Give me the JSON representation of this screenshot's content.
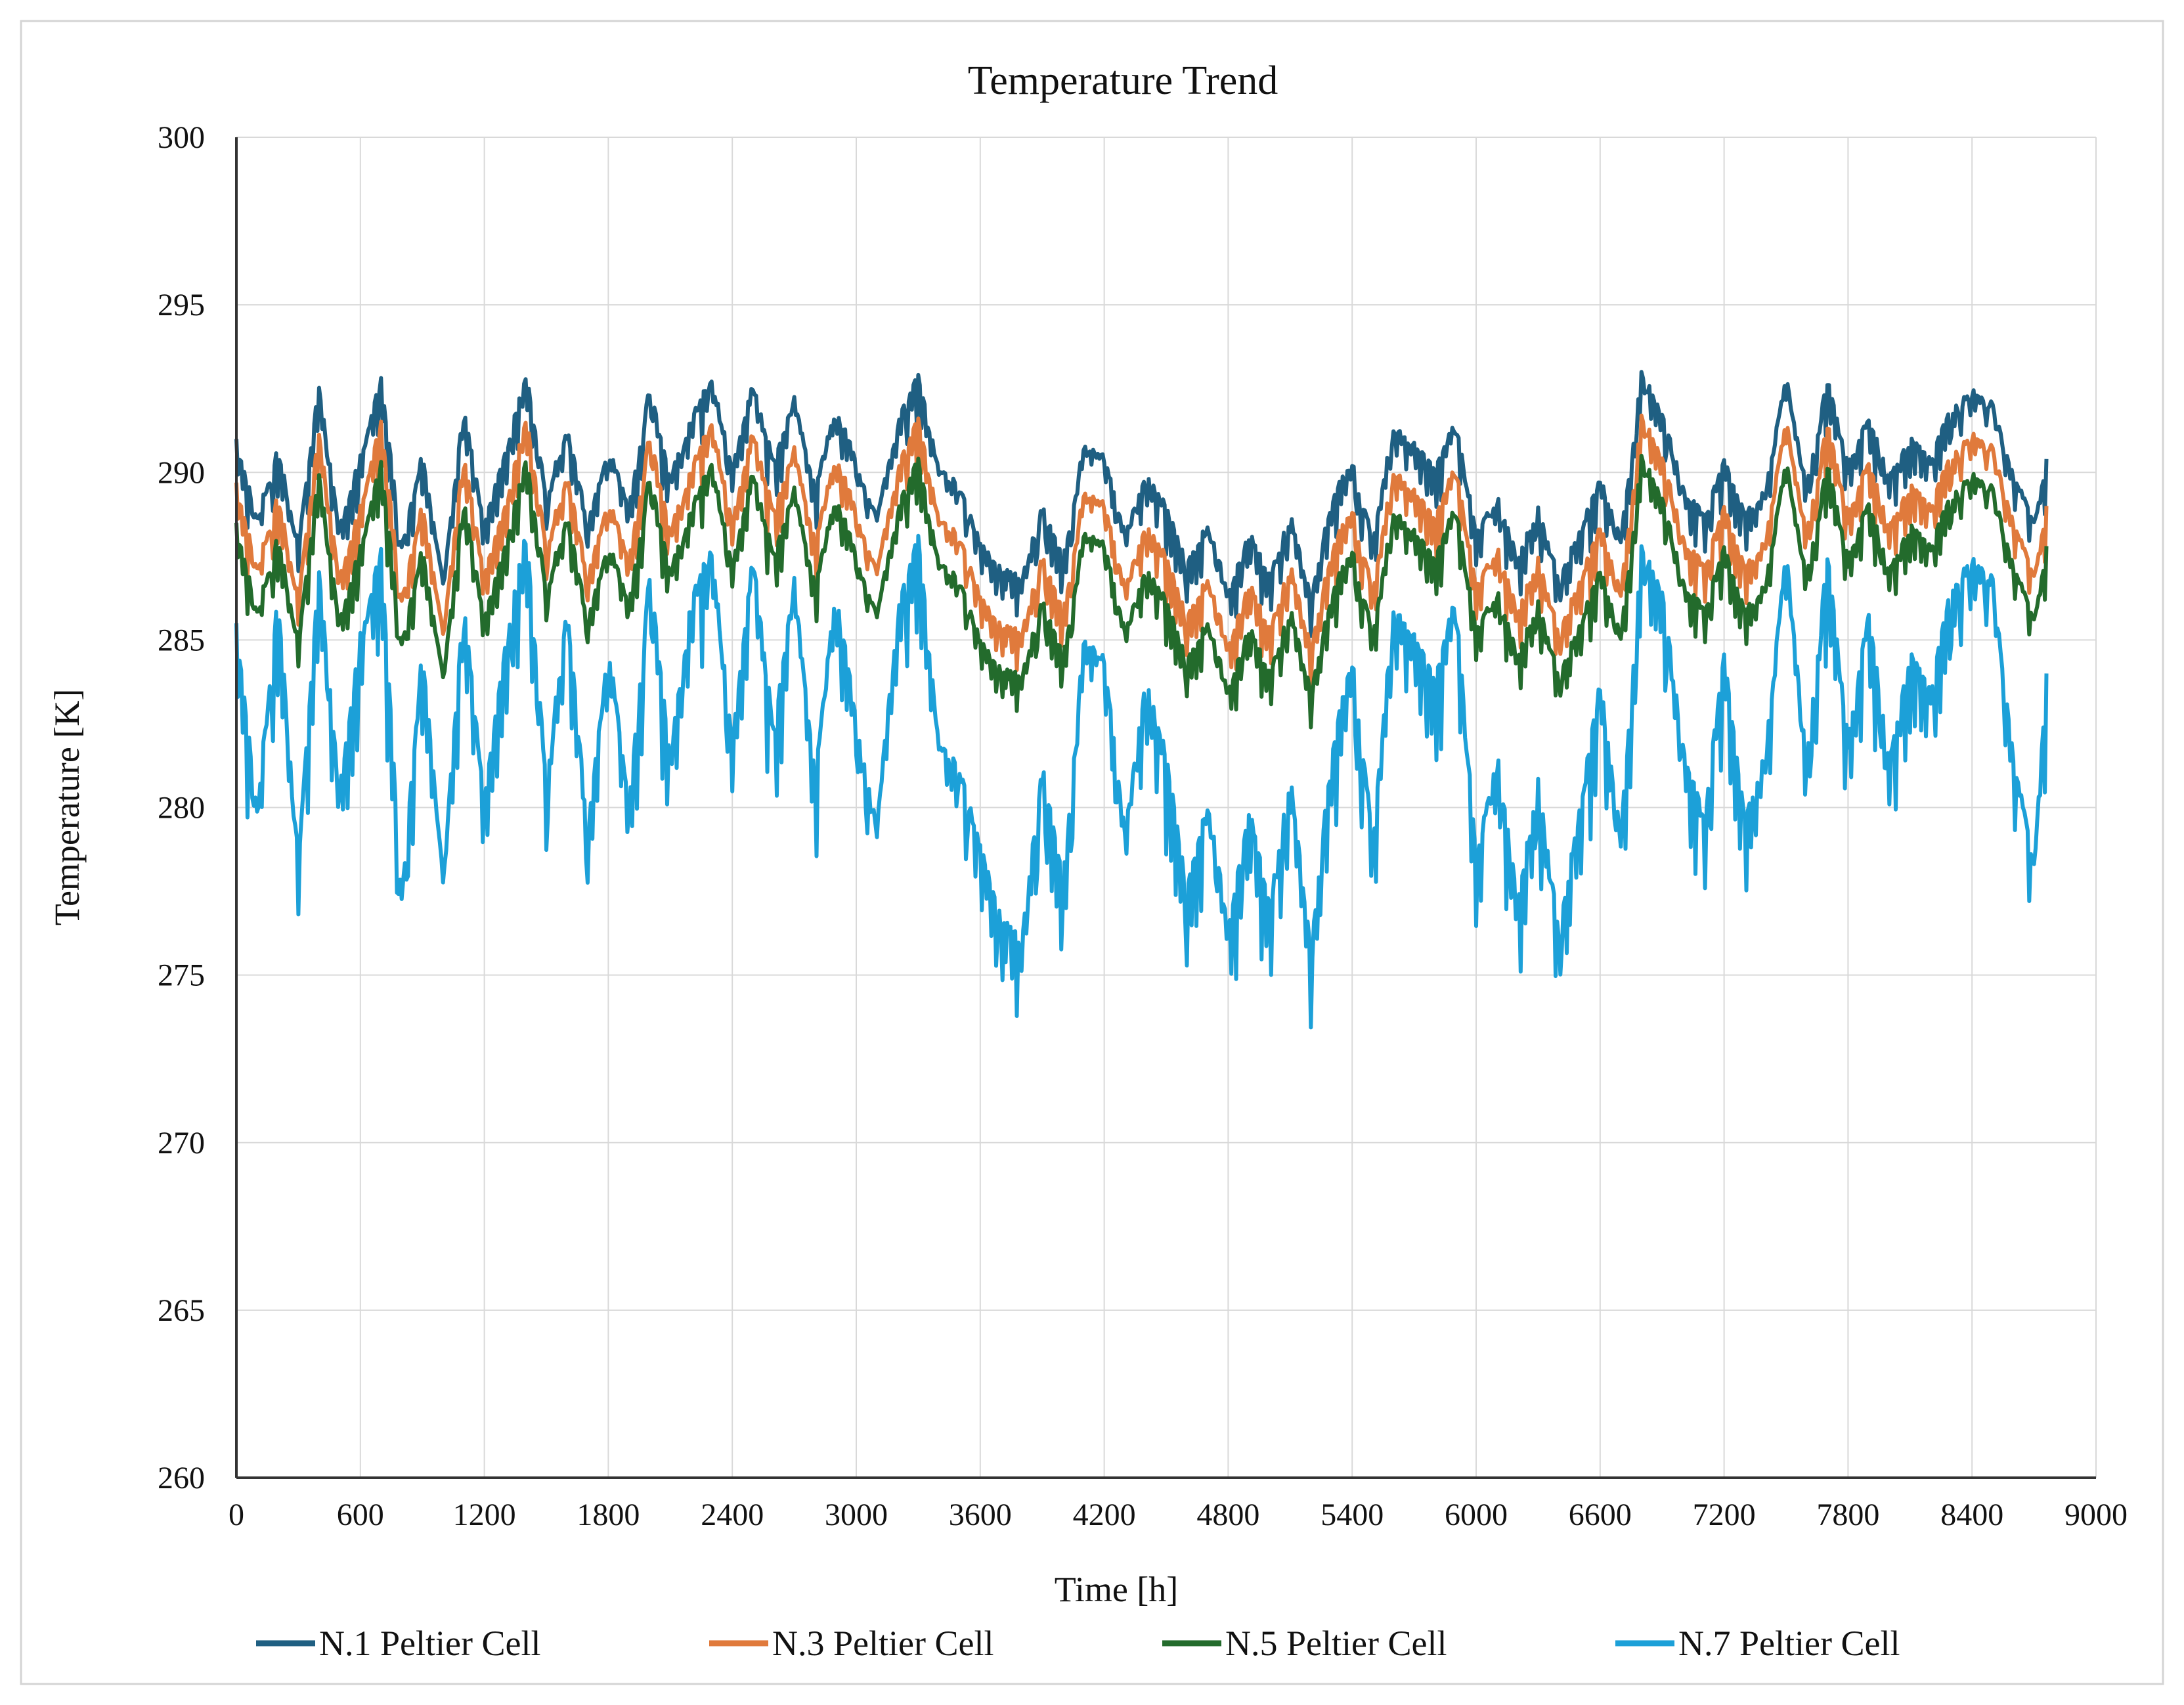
{
  "chart_data": {
    "type": "line",
    "title": "Temperature Trend",
    "xlabel": "Time [h]",
    "ylabel": "Temperature [K]",
    "xlim": [
      0,
      9000
    ],
    "ylim": [
      260,
      300
    ],
    "xticks": [
      0,
      600,
      1200,
      1800,
      2400,
      3000,
      3600,
      4200,
      4800,
      5400,
      6000,
      6600,
      7200,
      7800,
      8400,
      9000
    ],
    "yticks": [
      260,
      265,
      270,
      275,
      280,
      285,
      290,
      295,
      300
    ],
    "xtick_labels": [
      "0",
      "600",
      "1200",
      "1800",
      "2400",
      "3000",
      "3600",
      "4200",
      "4800",
      "5400",
      "6000",
      "6600",
      "7200",
      "7800",
      "8400",
      "9000"
    ],
    "ytick_labels": [
      "260",
      "265",
      "270",
      "275",
      "280",
      "285",
      "290",
      "295",
      "300"
    ],
    "grid": true,
    "legend_position": "bottom",
    "x": [
      0,
      100,
      200,
      300,
      400,
      500,
      600,
      700,
      800,
      900,
      1000,
      1100,
      1200,
      1300,
      1400,
      1500,
      1600,
      1700,
      1800,
      1900,
      2000,
      2100,
      2200,
      2300,
      2400,
      2500,
      2600,
      2700,
      2800,
      2900,
      3000,
      3100,
      3200,
      3300,
      3400,
      3500,
      3600,
      3700,
      3800,
      3900,
      4000,
      4100,
      4200,
      4300,
      4400,
      4500,
      4600,
      4700,
      4800,
      4900,
      5000,
      5100,
      5200,
      5300,
      5400,
      5500,
      5600,
      5700,
      5800,
      5900,
      6000,
      6100,
      6200,
      6300,
      6400,
      6500,
      6600,
      6700,
      6800,
      6900,
      7000,
      7100,
      7200,
      7300,
      7400,
      7500,
      7600,
      7700,
      7800,
      7900,
      8000,
      8100,
      8200,
      8300,
      8400,
      8500,
      8600,
      8700,
      8760
    ],
    "series": [
      {
        "name": "N.1 Peltier Cell",
        "color": "#1f5f82",
        "values": [
          291.0,
          288.7,
          290.8,
          287.9,
          292.7,
          288.4,
          290.6,
          292.9,
          287.8,
          290.7,
          286.8,
          292.0,
          288.5,
          290.6,
          293.1,
          289.4,
          291.4,
          288.6,
          290.8,
          289.0,
          292.6,
          289.9,
          291.7,
          292.9,
          290.2,
          292.7,
          290.4,
          292.3,
          289.6,
          292.0,
          290.5,
          288.8,
          291.6,
          293.0,
          290.1,
          289.7,
          288.0,
          287.2,
          286.9,
          289.1,
          287.5,
          290.9,
          290.6,
          288.2,
          290.0,
          289.1,
          287.3,
          288.6,
          286.5,
          288.3,
          287.0,
          288.8,
          286.3,
          289.3,
          290.4,
          288.1,
          291.5,
          290.9,
          290.2,
          291.6,
          288.3,
          289.4,
          287.5,
          289.0,
          286.9,
          288.3,
          289.9,
          288.1,
          293.0,
          291.9,
          289.6,
          288.8,
          290.4,
          288.8,
          289.6,
          292.9,
          289.7,
          292.8,
          290.3,
          291.7,
          289.9,
          291.1,
          290.5,
          292.0,
          292.5,
          292.1,
          290.0,
          288.6,
          290.4
        ]
      },
      {
        "name": "N.3 Peltier Cell",
        "color": "#e07a3c",
        "values": [
          289.7,
          287.2,
          289.4,
          286.3,
          291.3,
          286.9,
          289.1,
          291.6,
          286.2,
          289.2,
          285.3,
          290.6,
          287.0,
          289.0,
          291.8,
          287.9,
          290.0,
          287.0,
          289.3,
          287.4,
          291.2,
          288.3,
          290.2,
          291.6,
          288.6,
          291.3,
          288.9,
          290.8,
          288.0,
          290.6,
          289.0,
          287.2,
          290.2,
          291.7,
          288.6,
          288.2,
          286.4,
          285.5,
          285.3,
          287.6,
          285.9,
          289.5,
          289.2,
          286.6,
          288.5,
          287.6,
          285.7,
          287.0,
          284.9,
          286.8,
          285.4,
          287.3,
          284.8,
          287.8,
          289.0,
          286.6,
          290.2,
          289.5,
          288.7,
          290.3,
          286.7,
          287.9,
          285.9,
          287.5,
          285.3,
          286.8,
          288.5,
          286.5,
          291.7,
          290.6,
          288.1,
          287.3,
          289.0,
          287.2,
          288.1,
          291.6,
          288.3,
          291.5,
          288.8,
          290.4,
          288.4,
          289.7,
          289.1,
          290.6,
          291.2,
          290.8,
          288.6,
          287.0,
          289.0
        ]
      },
      {
        "name": "N.5 Peltier Cell",
        "color": "#236b2c",
        "values": [
          288.5,
          285.9,
          288.2,
          285.0,
          290.1,
          285.6,
          287.9,
          290.4,
          284.9,
          287.9,
          284.0,
          289.3,
          285.7,
          287.8,
          290.6,
          286.6,
          288.8,
          285.7,
          288.0,
          286.1,
          290.0,
          287.1,
          289.0,
          290.4,
          287.3,
          290.1,
          287.6,
          289.6,
          286.7,
          289.4,
          287.7,
          285.9,
          289.0,
          290.5,
          287.3,
          286.9,
          285.1,
          284.2,
          284.0,
          286.3,
          284.6,
          288.3,
          288.0,
          285.3,
          287.2,
          286.3,
          284.4,
          285.7,
          283.6,
          285.5,
          284.1,
          286.0,
          283.5,
          286.5,
          287.8,
          285.3,
          289.0,
          288.3,
          287.5,
          289.1,
          285.4,
          286.6,
          284.6,
          286.2,
          284.0,
          285.5,
          287.2,
          285.2,
          290.5,
          289.4,
          286.8,
          286.0,
          287.8,
          285.9,
          286.8,
          290.4,
          287.0,
          290.3,
          287.5,
          289.2,
          287.1,
          288.5,
          287.9,
          289.4,
          290.0,
          289.6,
          287.3,
          285.7,
          287.8
        ]
      },
      {
        "name": "N.7 Peltier Cell",
        "color": "#1ca0d8",
        "values": [
          285.5,
          280.0,
          286.4,
          278.5,
          287.2,
          280.6,
          285.3,
          287.8,
          277.3,
          284.9,
          278.0,
          286.2,
          280.3,
          284.8,
          288.5,
          280.9,
          286.1,
          279.4,
          285.0,
          280.1,
          287.1,
          281.6,
          286.3,
          287.9,
          282.0,
          287.6,
          282.4,
          286.9,
          281.0,
          286.6,
          282.8,
          279.6,
          286.0,
          288.2,
          281.9,
          281.3,
          279.0,
          276.8,
          276.1,
          281.4,
          277.9,
          285.1,
          284.6,
          279.3,
          283.9,
          281.7,
          277.6,
          280.4,
          276.5,
          280.1,
          277.2,
          281.0,
          275.8,
          281.8,
          284.6,
          279.2,
          286.1,
          285.2,
          283.9,
          286.4,
          278.6,
          281.8,
          277.3,
          280.9,
          276.4,
          280.0,
          283.9,
          279.2,
          287.8,
          286.6,
          281.9,
          279.8,
          284.6,
          279.7,
          281.8,
          287.7,
          281.5,
          287.6,
          282.1,
          285.9,
          281.4,
          284.7,
          283.6,
          286.7,
          287.5,
          286.9,
          281.6,
          278.4,
          284.0
        ]
      }
    ]
  }
}
